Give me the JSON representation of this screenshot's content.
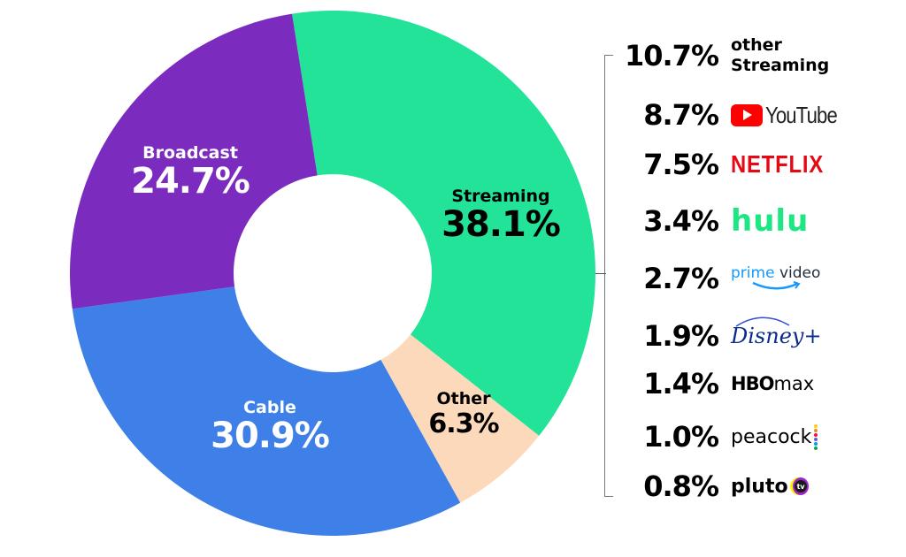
{
  "chart_data": {
    "type": "pie",
    "subtype": "donut",
    "title": "",
    "categories": [
      "Streaming",
      "Other",
      "Cable",
      "Broadcast"
    ],
    "values": [
      38.1,
      6.3,
      30.9,
      24.7
    ],
    "colors": [
      "#22e398",
      "#fdd9bb",
      "#3e80e8",
      "#7b2cbf"
    ],
    "label_text_colors": [
      "#000000",
      "#000000",
      "#ffffff",
      "#ffffff"
    ],
    "start_angle_deg": -8.9,
    "direction": "clockwise",
    "breakdown": {
      "parent": "Streaming",
      "items": [
        {
          "name": "other Streaming",
          "value": 10.7
        },
        {
          "name": "YouTube",
          "value": 8.7
        },
        {
          "name": "Netflix",
          "value": 7.5
        },
        {
          "name": "Hulu",
          "value": 3.4
        },
        {
          "name": "Prime Video",
          "value": 2.7
        },
        {
          "name": "Disney+",
          "value": 1.9
        },
        {
          "name": "HBO Max",
          "value": 1.4
        },
        {
          "name": "Peacock",
          "value": 1.0
        },
        {
          "name": "Pluto TV",
          "value": 0.8
        }
      ]
    }
  },
  "slices": [
    {
      "name": "Streaming",
      "pct": "38.1%"
    },
    {
      "name": "Other",
      "pct": "6.3%"
    },
    {
      "name": "Cable",
      "pct": "30.9%"
    },
    {
      "name": "Broadcast",
      "pct": "24.7%"
    }
  ],
  "legend": {
    "rows": [
      {
        "pct": "10.7%",
        "line1": "other",
        "line2": "Streaming"
      },
      {
        "pct": "8.7%",
        "brand": "YouTube"
      },
      {
        "pct": "7.5%",
        "brand": "NETFLIX"
      },
      {
        "pct": "3.4%",
        "brand": "hulu"
      },
      {
        "pct": "2.7%",
        "brand_a": "prime",
        "brand_b": "video"
      },
      {
        "pct": "1.9%",
        "brand": "Disney+"
      },
      {
        "pct": "1.4%",
        "brand_a": "HBO",
        "brand_b": "max"
      },
      {
        "pct": "1.0%",
        "brand": "peacock"
      },
      {
        "pct": "0.8%",
        "brand": "pluto",
        "badge": "tv"
      }
    ]
  }
}
